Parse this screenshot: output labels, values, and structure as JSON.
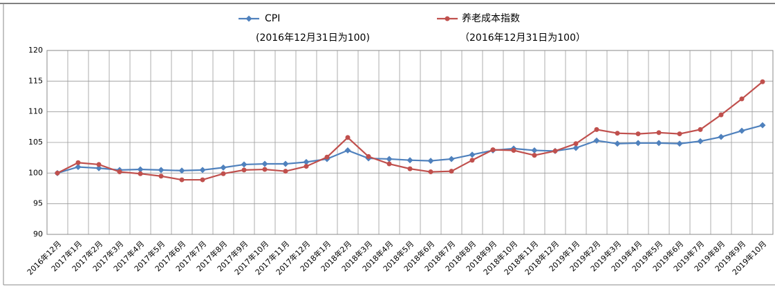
{
  "chart_data": {
    "type": "line",
    "categories": [
      "2016年12月",
      "2017年1月",
      "2017年2月",
      "2017年3月",
      "2017年4月",
      "2017年5月",
      "2017年6月",
      "2017年7月",
      "2017年8月",
      "2017年9月",
      "2017年10月",
      "2017年11月",
      "2017年12月",
      "2018年1月",
      "2018年2月",
      "2018年3月",
      "2018年4月",
      "2018年5月",
      "2018年6月",
      "2018年7月",
      "2018年8月",
      "2018年9月",
      "2018年10月",
      "2018年11月",
      "2018年12月",
      "2019年1月",
      "2019年2月",
      "2019年3月",
      "2019年4月",
      "2019年5月",
      "2019年6月",
      "2019年7月",
      "2019年8月",
      "2019年9月",
      "2019年10月"
    ],
    "series": [
      {
        "name": "CPI",
        "note": "(2016年12月31日为100)",
        "color": "#4f81bd",
        "marker": "diamond",
        "values": [
          100,
          101.0,
          100.8,
          100.5,
          100.6,
          100.5,
          100.4,
          100.5,
          100.9,
          101.4,
          101.5,
          101.5,
          101.8,
          102.3,
          103.7,
          102.4,
          102.3,
          102.1,
          102.0,
          102.3,
          103.0,
          103.7,
          104.0,
          103.7,
          103.6,
          104.1,
          105.3,
          104.8,
          104.9,
          104.9,
          104.8,
          105.2,
          105.9,
          106.9,
          107.8
        ]
      },
      {
        "name": "养老成本指数",
        "note": "（2016年12月31日为100）",
        "color": "#c0504d",
        "marker": "circle",
        "values": [
          100,
          101.7,
          101.4,
          100.2,
          99.9,
          99.5,
          98.9,
          98.9,
          99.9,
          100.5,
          100.6,
          100.3,
          101.1,
          102.6,
          105.8,
          102.7,
          101.5,
          100.7,
          100.2,
          100.3,
          102.1,
          103.8,
          103.7,
          102.9,
          103.6,
          104.8,
          107.1,
          106.5,
          106.4,
          106.6,
          106.4,
          107.1,
          109.5,
          112.1,
          114.9
        ]
      }
    ],
    "ylim": [
      90,
      120
    ],
    "yticks": [
      90,
      95,
      100,
      105,
      110,
      115,
      120
    ],
    "grid": true
  }
}
